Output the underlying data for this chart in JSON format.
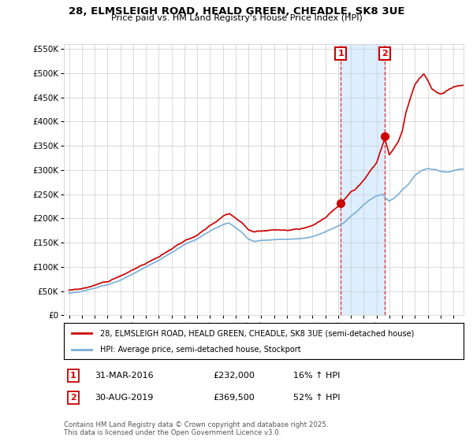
{
  "title_line1": "28, ELMSLEIGH ROAD, HEALD GREEN, CHEADLE, SK8 3UE",
  "title_line2": "Price paid vs. HM Land Registry's House Price Index (HPI)",
  "legend_line1": "28, ELMSLEIGH ROAD, HEALD GREEN, CHEADLE, SK8 3UE (semi-detached house)",
  "legend_line2": "HPI: Average price, semi-detached house, Stockport",
  "annotation1_label": "1",
  "annotation1_date": "31-MAR-2016",
  "annotation1_price": "£232,000",
  "annotation1_hpi": "16% ↑ HPI",
  "annotation2_label": "2",
  "annotation2_date": "30-AUG-2019",
  "annotation2_price": "£369,500",
  "annotation2_hpi": "52% ↑ HPI",
  "footer": "Contains HM Land Registry data © Crown copyright and database right 2025.\nThis data is licensed under the Open Government Licence v3.0.",
  "red_color": "#cc0000",
  "blue_color": "#7aaed6",
  "shade_color": "#ddeeff",
  "annotation_color": "#cc0000",
  "bg_color": "#ffffff",
  "grid_color": "#cccccc",
  "ylim_max": 560000,
  "yticks": [
    0,
    50000,
    100000,
    150000,
    200000,
    250000,
    300000,
    350000,
    400000,
    450000,
    500000,
    550000
  ],
  "point1_x": 2016.21,
  "point1_y": 232000,
  "point2_x": 2019.66,
  "point2_y": 369500,
  "xlim_left": 1994.6,
  "xlim_right": 2025.8
}
